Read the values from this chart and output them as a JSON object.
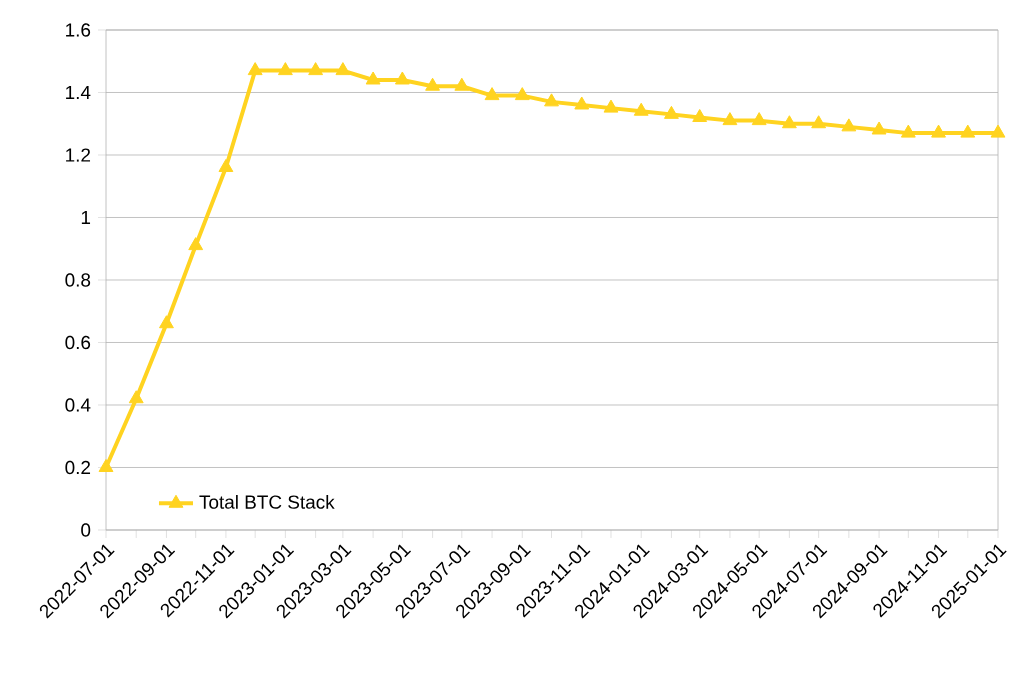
{
  "chart_data": {
    "type": "line",
    "x": [
      "2022-07-01",
      "2022-08-01",
      "2022-09-01",
      "2022-10-01",
      "2022-11-01",
      "2022-12-01",
      "2023-01-01",
      "2023-02-01",
      "2023-03-01",
      "2023-04-01",
      "2023-05-01",
      "2023-06-01",
      "2023-07-01",
      "2023-08-01",
      "2023-09-01",
      "2023-10-01",
      "2023-11-01",
      "2023-12-01",
      "2024-01-01",
      "2024-02-01",
      "2024-03-01",
      "2024-04-01",
      "2024-05-01",
      "2024-06-01",
      "2024-07-01",
      "2024-08-01",
      "2024-09-01",
      "2024-10-01",
      "2024-11-01",
      "2024-12-01",
      "2025-01-01"
    ],
    "series": [
      {
        "name": "Total BTC Stack",
        "color": "#ffd320",
        "values": [
          0.2,
          0.42,
          0.66,
          0.91,
          1.16,
          1.47,
          1.47,
          1.47,
          1.47,
          1.44,
          1.44,
          1.42,
          1.42,
          1.39,
          1.39,
          1.37,
          1.36,
          1.35,
          1.34,
          1.33,
          1.32,
          1.31,
          1.31,
          1.3,
          1.3,
          1.29,
          1.28,
          1.27,
          1.27,
          1.27,
          1.27
        ]
      }
    ],
    "xlim": [
      "2022-07-01",
      "2025-01-01"
    ],
    "xticks": [
      {
        "value": "2022-07-01",
        "label": "2022-07-01"
      },
      {
        "value": "2022-08-01",
        "label": null
      },
      {
        "value": "2022-09-01",
        "label": "2022-09-01"
      },
      {
        "value": "2022-10-01",
        "label": null
      },
      {
        "value": "2022-11-01",
        "label": "2022-11-01"
      },
      {
        "value": "2022-12-01",
        "label": null
      },
      {
        "value": "2023-01-01",
        "label": "2023-01-01"
      },
      {
        "value": "2023-02-01",
        "label": null
      },
      {
        "value": "2023-03-01",
        "label": "2023-03-01"
      },
      {
        "value": "2023-04-01",
        "label": null
      },
      {
        "value": "2023-05-01",
        "label": "2023-05-01"
      },
      {
        "value": "2023-06-01",
        "label": null
      },
      {
        "value": "2023-07-01",
        "label": "2023-07-01"
      },
      {
        "value": "2023-08-01",
        "label": null
      },
      {
        "value": "2023-09-01",
        "label": "2023-09-01"
      },
      {
        "value": "2023-10-01",
        "label": null
      },
      {
        "value": "2023-11-01",
        "label": "2023-11-01"
      },
      {
        "value": "2023-12-01",
        "label": null
      },
      {
        "value": "2024-01-01",
        "label": "2024-01-01"
      },
      {
        "value": "2024-02-01",
        "label": null
      },
      {
        "value": "2024-03-01",
        "label": "2024-03-01"
      },
      {
        "value": "2024-04-01",
        "label": null
      },
      {
        "value": "2024-05-01",
        "label": "2024-05-01"
      },
      {
        "value": "2024-06-01",
        "label": null
      },
      {
        "value": "2024-07-01",
        "label": "2024-07-01"
      },
      {
        "value": "2024-08-01",
        "label": null
      },
      {
        "value": "2024-09-01",
        "label": "2024-09-01"
      },
      {
        "value": "2024-10-01",
        "label": null
      },
      {
        "value": "2024-11-01",
        "label": "2024-11-01"
      },
      {
        "value": "2024-12-01",
        "label": null
      },
      {
        "value": "2025-01-01",
        "label": "2025-01-01"
      }
    ],
    "ylim": [
      0,
      1.6
    ],
    "yticks": [
      0,
      {
        "value": 0.2,
        "label": "0.2"
      },
      {
        "value": 0.4,
        "label": "0.4"
      },
      {
        "value": 0.6,
        "label": "0.6"
      },
      {
        "value": 0.8,
        "label": "0.8"
      },
      1,
      {
        "value": 1.2,
        "label": "1.2"
      },
      {
        "value": 1.4,
        "label": "1.4"
      },
      {
        "value": 1.6,
        "label": "1.6"
      }
    ],
    "grid": "y",
    "legend": "bottom left",
    "marker": "triangle",
    "line_style": "solid"
  }
}
